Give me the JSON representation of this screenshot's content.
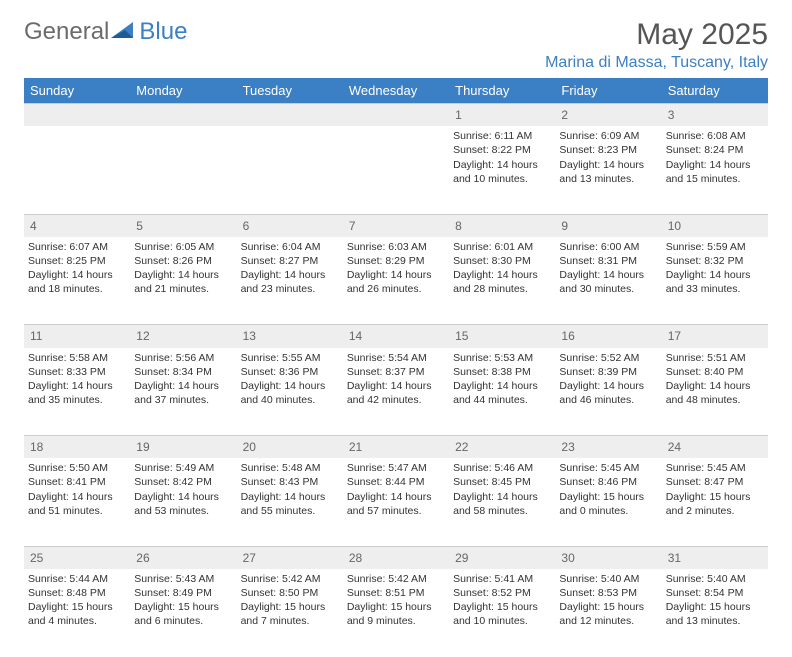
{
  "brand": {
    "part1": "General",
    "part2": "Blue"
  },
  "title": "May 2025",
  "location": "Marina di Massa, Tuscany, Italy",
  "colors": {
    "header_bg": "#3b7fc4",
    "header_fg": "#ffffff",
    "daynum_bg": "#eeeeee",
    "daynum_fg": "#666666",
    "text": "#333333",
    "logo_gray": "#6b6b6b",
    "logo_blue": "#3b7fc4",
    "page_bg": "#ffffff"
  },
  "weekdays": [
    "Sunday",
    "Monday",
    "Tuesday",
    "Wednesday",
    "Thursday",
    "Friday",
    "Saturday"
  ],
  "weeks": [
    {
      "nums": [
        "",
        "",
        "",
        "",
        "1",
        "2",
        "3"
      ],
      "cells": [
        null,
        null,
        null,
        null,
        {
          "sunrise": "6:11 AM",
          "sunset": "8:22 PM",
          "dl_h": 14,
          "dl_m": 10
        },
        {
          "sunrise": "6:09 AM",
          "sunset": "8:23 PM",
          "dl_h": 14,
          "dl_m": 13
        },
        {
          "sunrise": "6:08 AM",
          "sunset": "8:24 PM",
          "dl_h": 14,
          "dl_m": 15
        }
      ]
    },
    {
      "nums": [
        "4",
        "5",
        "6",
        "7",
        "8",
        "9",
        "10"
      ],
      "cells": [
        {
          "sunrise": "6:07 AM",
          "sunset": "8:25 PM",
          "dl_h": 14,
          "dl_m": 18
        },
        {
          "sunrise": "6:05 AM",
          "sunset": "8:26 PM",
          "dl_h": 14,
          "dl_m": 21
        },
        {
          "sunrise": "6:04 AM",
          "sunset": "8:27 PM",
          "dl_h": 14,
          "dl_m": 23
        },
        {
          "sunrise": "6:03 AM",
          "sunset": "8:29 PM",
          "dl_h": 14,
          "dl_m": 26
        },
        {
          "sunrise": "6:01 AM",
          "sunset": "8:30 PM",
          "dl_h": 14,
          "dl_m": 28
        },
        {
          "sunrise": "6:00 AM",
          "sunset": "8:31 PM",
          "dl_h": 14,
          "dl_m": 30
        },
        {
          "sunrise": "5:59 AM",
          "sunset": "8:32 PM",
          "dl_h": 14,
          "dl_m": 33
        }
      ]
    },
    {
      "nums": [
        "11",
        "12",
        "13",
        "14",
        "15",
        "16",
        "17"
      ],
      "cells": [
        {
          "sunrise": "5:58 AM",
          "sunset": "8:33 PM",
          "dl_h": 14,
          "dl_m": 35
        },
        {
          "sunrise": "5:56 AM",
          "sunset": "8:34 PM",
          "dl_h": 14,
          "dl_m": 37
        },
        {
          "sunrise": "5:55 AM",
          "sunset": "8:36 PM",
          "dl_h": 14,
          "dl_m": 40
        },
        {
          "sunrise": "5:54 AM",
          "sunset": "8:37 PM",
          "dl_h": 14,
          "dl_m": 42
        },
        {
          "sunrise": "5:53 AM",
          "sunset": "8:38 PM",
          "dl_h": 14,
          "dl_m": 44
        },
        {
          "sunrise": "5:52 AM",
          "sunset": "8:39 PM",
          "dl_h": 14,
          "dl_m": 46
        },
        {
          "sunrise": "5:51 AM",
          "sunset": "8:40 PM",
          "dl_h": 14,
          "dl_m": 48
        }
      ]
    },
    {
      "nums": [
        "18",
        "19",
        "20",
        "21",
        "22",
        "23",
        "24"
      ],
      "cells": [
        {
          "sunrise": "5:50 AM",
          "sunset": "8:41 PM",
          "dl_h": 14,
          "dl_m": 51
        },
        {
          "sunrise": "5:49 AM",
          "sunset": "8:42 PM",
          "dl_h": 14,
          "dl_m": 53
        },
        {
          "sunrise": "5:48 AM",
          "sunset": "8:43 PM",
          "dl_h": 14,
          "dl_m": 55
        },
        {
          "sunrise": "5:47 AM",
          "sunset": "8:44 PM",
          "dl_h": 14,
          "dl_m": 57
        },
        {
          "sunrise": "5:46 AM",
          "sunset": "8:45 PM",
          "dl_h": 14,
          "dl_m": 58
        },
        {
          "sunrise": "5:45 AM",
          "sunset": "8:46 PM",
          "dl_h": 15,
          "dl_m": 0
        },
        {
          "sunrise": "5:45 AM",
          "sunset": "8:47 PM",
          "dl_h": 15,
          "dl_m": 2
        }
      ]
    },
    {
      "nums": [
        "25",
        "26",
        "27",
        "28",
        "29",
        "30",
        "31"
      ],
      "cells": [
        {
          "sunrise": "5:44 AM",
          "sunset": "8:48 PM",
          "dl_h": 15,
          "dl_m": 4
        },
        {
          "sunrise": "5:43 AM",
          "sunset": "8:49 PM",
          "dl_h": 15,
          "dl_m": 6
        },
        {
          "sunrise": "5:42 AM",
          "sunset": "8:50 PM",
          "dl_h": 15,
          "dl_m": 7
        },
        {
          "sunrise": "5:42 AM",
          "sunset": "8:51 PM",
          "dl_h": 15,
          "dl_m": 9
        },
        {
          "sunrise": "5:41 AM",
          "sunset": "8:52 PM",
          "dl_h": 15,
          "dl_m": 10
        },
        {
          "sunrise": "5:40 AM",
          "sunset": "8:53 PM",
          "dl_h": 15,
          "dl_m": 12
        },
        {
          "sunrise": "5:40 AM",
          "sunset": "8:54 PM",
          "dl_h": 15,
          "dl_m": 13
        }
      ]
    }
  ],
  "labels": {
    "sunrise": "Sunrise:",
    "sunset": "Sunset:",
    "daylight": "Daylight:"
  }
}
